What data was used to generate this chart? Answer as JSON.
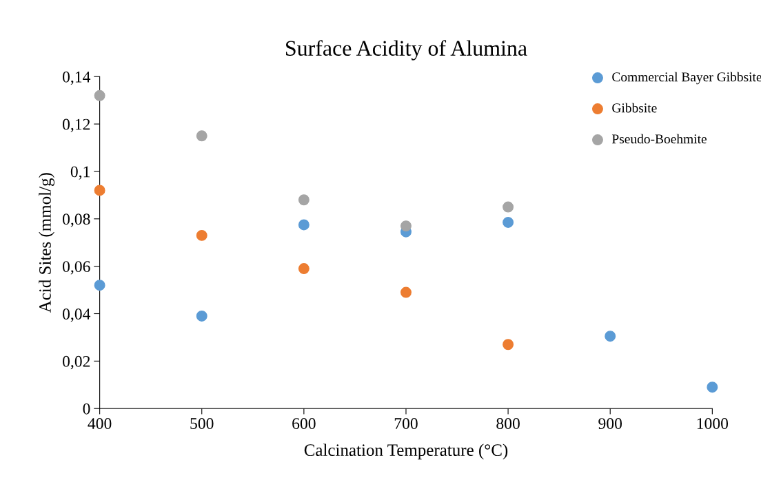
{
  "chart_data": {
    "type": "scatter",
    "title": "Surface Acidity of Alumina",
    "xlabel": "Calcination Temperature (°C)",
    "ylabel": "Acid Sites (mmol/g)",
    "x": [
      400,
      500,
      600,
      700,
      800,
      900,
      1000
    ],
    "series": [
      {
        "name": "Commercial Bayer Gibbsite",
        "color": "#5b9bd5",
        "values": [
          0.052,
          0.039,
          0.0775,
          0.0745,
          0.0785,
          0.0305,
          0.009
        ]
      },
      {
        "name": "Gibbsite",
        "color": "#ed7d31",
        "values": [
          0.092,
          0.073,
          0.059,
          0.049,
          0.027,
          null,
          null
        ]
      },
      {
        "name": "Pseudo-Boehmite",
        "color": "#a5a5a5",
        "values": [
          0.132,
          0.115,
          0.088,
          0.077,
          0.085,
          null,
          null
        ]
      }
    ],
    "xlim": [
      400,
      1000
    ],
    "xticks": [
      400,
      500,
      600,
      700,
      800,
      900,
      1000
    ],
    "ylim": [
      0,
      0.14
    ],
    "yticks": [
      {
        "value": 0,
        "label": "0"
      },
      {
        "value": 0.02,
        "label": "0,02"
      },
      {
        "value": 0.04,
        "label": "0,04"
      },
      {
        "value": 0.06,
        "label": "0,06"
      },
      {
        "value": 0.08,
        "label": "0,08"
      },
      {
        "value": 0.1,
        "label": "0,1"
      },
      {
        "value": 0.12,
        "label": "0,12"
      },
      {
        "value": 0.14,
        "label": "0,14"
      }
    ],
    "grid": false,
    "legend": "top right",
    "marker": "circle"
  }
}
